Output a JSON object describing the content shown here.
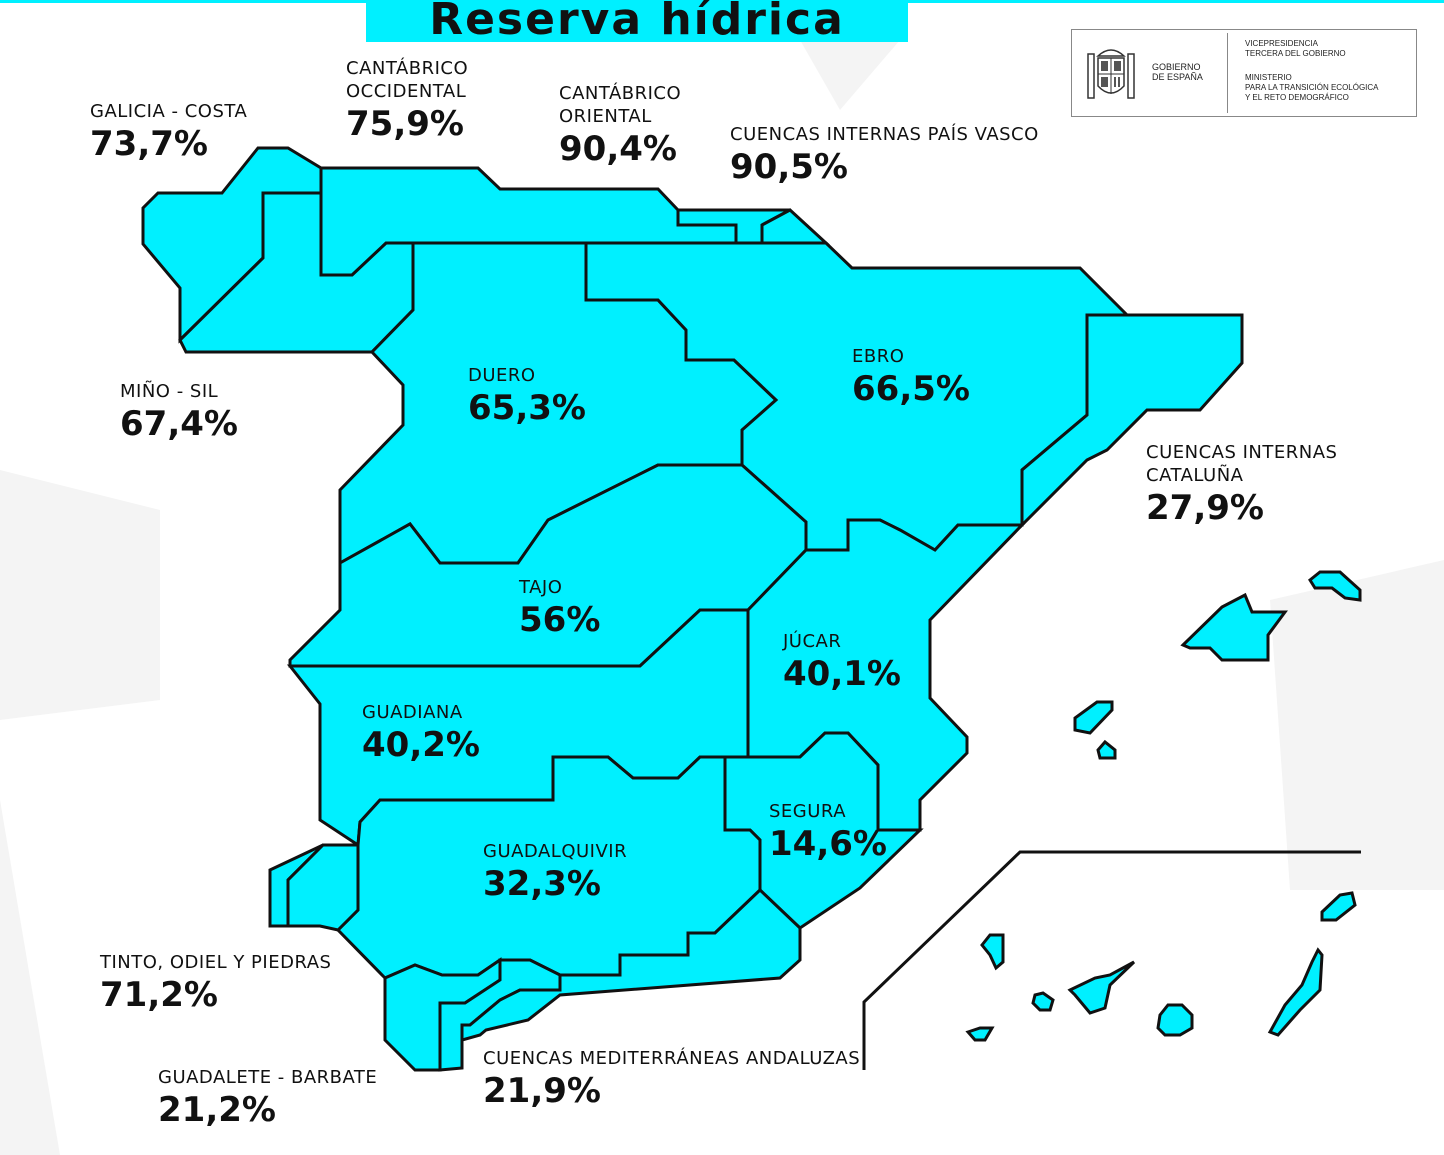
{
  "title": "Reserva hídrica",
  "colors": {
    "basin_fill": "#00f0ff",
    "border": "#111111",
    "bg_shape": "#f3f3f3"
  },
  "logo": {
    "emblem": "coat-of-arms-of-spain",
    "gobierno": "GOBIERNO\nDE ESPAÑA",
    "vicepresidencia": "VICEPRESIDENCIA\nTERCERA DEL GOBIERNO",
    "ministerio": "MINISTERIO\nPARA LA TRANSICIÓN ECOLÓGICA\nY EL RETO DEMOGRÁFICO"
  },
  "basins": {
    "galicia_costa": {
      "name": "GALICIA - COSTA",
      "value": "73,7%"
    },
    "cantabrico_occidental": {
      "name": "CANTÁBRICO\nOCCIDENTAL",
      "value": "75,9%"
    },
    "cantabrico_oriental": {
      "name": "CANTÁBRICO\nORIENTAL",
      "value": "90,4%"
    },
    "pais_vasco": {
      "name": "CUENCAS INTERNAS PAÍS VASCO",
      "value": "90,5%"
    },
    "mino_sil": {
      "name": "MIÑO - SIL",
      "value": "67,4%"
    },
    "duero": {
      "name": "DUERO",
      "value": "65,3%"
    },
    "ebro": {
      "name": "EBRO",
      "value": "66,5%"
    },
    "cataluna": {
      "name": "CUENCAS INTERNAS\nCATALUÑA",
      "value": "27,9%"
    },
    "tajo": {
      "name": "TAJO",
      "value": "56%"
    },
    "jucar": {
      "name": "JÚCAR",
      "value": "40,1%"
    },
    "guadiana": {
      "name": "GUADIANA",
      "value": "40,2%"
    },
    "segura": {
      "name": "SEGURA",
      "value": "14,6%"
    },
    "guadalquivir": {
      "name": "GUADALQUIVIR",
      "value": "32,3%"
    },
    "tinto": {
      "name": "TINTO, ODIEL Y PIEDRAS",
      "value": "71,2%"
    },
    "guadalete": {
      "name": "GUADALETE - BARBATE",
      "value": "21,2%"
    },
    "mediterraneas": {
      "name": "CUENCAS MEDITERRÁNEAS ANDALUZAS",
      "value": "21,9%"
    }
  }
}
